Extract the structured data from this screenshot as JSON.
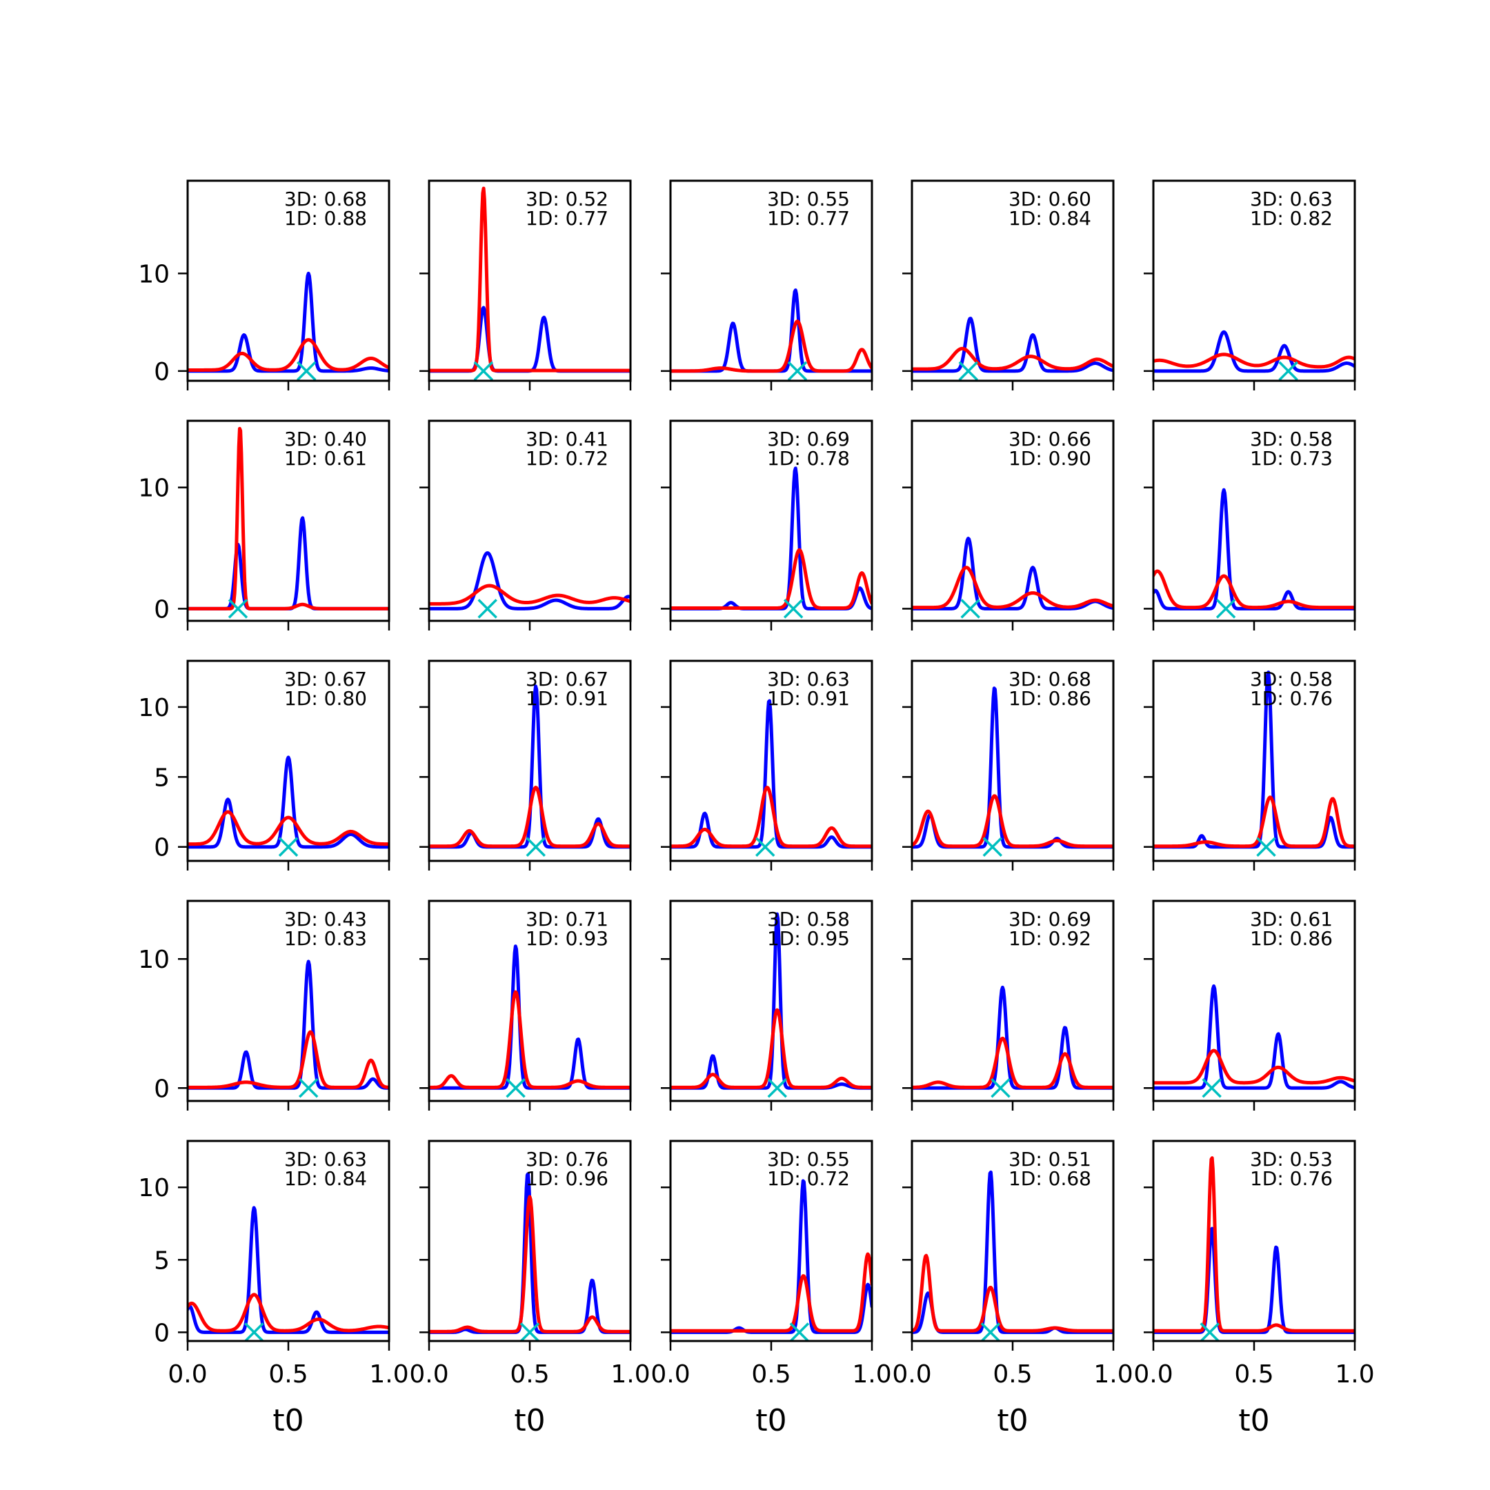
{
  "chart_data": {
    "type": "line",
    "layout": "small-multiples 5x5",
    "xlabel": "t0",
    "xlim": [
      0,
      1
    ],
    "xticks": [
      "0.0",
      "0.5",
      "1.0"
    ],
    "colors": {
      "blue": "#0000ff",
      "red": "#ff0000",
      "marker": "#00bfbf"
    },
    "shared_y_per_row": true,
    "row_ylims": [
      [
        -1,
        19.5
      ],
      [
        -1,
        15.5
      ],
      [
        -1,
        13.3
      ],
      [
        -1,
        14.5
      ],
      [
        -0.6,
        13.2
      ]
    ],
    "row_yticks": [
      [
        "0",
        "10"
      ],
      [
        "0",
        "10"
      ],
      [
        "0",
        "5",
        "10"
      ],
      [
        "0",
        "10"
      ],
      [
        "0",
        "5",
        "10"
      ]
    ],
    "panels": [
      {
        "label3d": "3D: 0.68",
        "label1d": "1D: 0.88",
        "marker_x": 0.59,
        "blue": [
          [
            0.28,
            3.7,
            0.022
          ],
          [
            0.6,
            10.0,
            0.018
          ],
          [
            0.91,
            0.3,
            0.04
          ]
        ],
        "red": [
          [
            0.27,
            1.7,
            0.045
          ],
          [
            0.6,
            3.1,
            0.05
          ],
          [
            0.91,
            1.2,
            0.05
          ]
        ],
        "red_base": 0.1
      },
      {
        "label3d": "3D: 0.52",
        "label1d": "1D: 0.77",
        "marker_x": 0.27,
        "blue": [
          [
            0.27,
            6.5,
            0.018
          ],
          [
            0.57,
            5.5,
            0.02
          ]
        ],
        "red": [
          [
            0.27,
            18.7,
            0.014
          ]
        ],
        "red_base": 0.05
      },
      {
        "label3d": "3D: 0.55",
        "label1d": "1D: 0.77",
        "marker_x": 0.63,
        "blue": [
          [
            0.31,
            4.9,
            0.02
          ],
          [
            0.62,
            8.3,
            0.016
          ]
        ],
        "red": [
          [
            0.25,
            0.3,
            0.05
          ],
          [
            0.63,
            5.1,
            0.03
          ],
          [
            0.95,
            2.2,
            0.025
          ]
        ],
        "red_base": 0.0
      },
      {
        "label3d": "3D: 0.60",
        "label1d": "1D: 0.84",
        "marker_x": 0.28,
        "blue": [
          [
            0.29,
            5.4,
            0.022
          ],
          [
            0.6,
            3.7,
            0.022
          ],
          [
            0.91,
            0.8,
            0.04
          ]
        ],
        "red": [
          [
            0.25,
            2.1,
            0.05
          ],
          [
            0.59,
            1.3,
            0.06
          ],
          [
            0.92,
            1.0,
            0.05
          ]
        ],
        "red_base": 0.2
      },
      {
        "label3d": "3D: 0.63",
        "label1d": "1D: 0.82",
        "marker_x": 0.67,
        "blue": [
          [
            0.35,
            4.0,
            0.03
          ],
          [
            0.65,
            2.6,
            0.025
          ],
          [
            0.96,
            0.8,
            0.04
          ]
        ],
        "red": [
          [
            0.03,
            0.7,
            0.06
          ],
          [
            0.35,
            1.3,
            0.07
          ],
          [
            0.65,
            1.0,
            0.06
          ],
          [
            0.97,
            1.0,
            0.05
          ]
        ],
        "red_base": 0.4
      },
      {
        "label3d": "3D: 0.40",
        "label1d": "1D: 0.61",
        "marker_x": 0.25,
        "blue": [
          [
            0.25,
            5.3,
            0.016
          ],
          [
            0.57,
            7.5,
            0.016
          ]
        ],
        "red": [
          [
            0.26,
            15.0,
            0.012
          ],
          [
            0.57,
            0.35,
            0.03
          ]
        ],
        "red_base": 0.0
      },
      {
        "label3d": "3D: 0.41",
        "label1d": "1D: 0.72",
        "marker_x": 0.29,
        "blue": [
          [
            0.29,
            4.6,
            0.04
          ],
          [
            0.63,
            0.7,
            0.05
          ],
          [
            0.99,
            1.0,
            0.03
          ]
        ],
        "red": [
          [
            0.3,
            1.5,
            0.07
          ],
          [
            0.64,
            0.7,
            0.07
          ],
          [
            0.92,
            0.5,
            0.06
          ]
        ],
        "red_base": 0.4
      },
      {
        "label3d": "3D: 0.69",
        "label1d": "1D: 0.78",
        "marker_x": 0.61,
        "blue": [
          [
            0.3,
            0.5,
            0.02
          ],
          [
            0.62,
            11.6,
            0.016
          ],
          [
            0.94,
            1.7,
            0.02
          ]
        ],
        "red": [
          [
            0.64,
            4.8,
            0.03
          ],
          [
            0.95,
            2.9,
            0.025
          ]
        ],
        "red_base": 0.05
      },
      {
        "label3d": "3D: 0.66",
        "label1d": "1D: 0.90",
        "marker_x": 0.29,
        "blue": [
          [
            0.28,
            5.8,
            0.022
          ],
          [
            0.6,
            3.4,
            0.022
          ],
          [
            0.91,
            0.6,
            0.04
          ]
        ],
        "red": [
          [
            0.27,
            3.3,
            0.045
          ],
          [
            0.6,
            1.2,
            0.06
          ],
          [
            0.91,
            0.6,
            0.05
          ]
        ],
        "red_base": 0.1
      },
      {
        "label3d": "3D: 0.58",
        "label1d": "1D: 0.73",
        "marker_x": 0.36,
        "blue": [
          [
            0.01,
            1.5,
            0.02
          ],
          [
            0.35,
            9.8,
            0.018
          ],
          [
            0.67,
            1.4,
            0.02
          ]
        ],
        "red": [
          [
            0.02,
            3.0,
            0.04
          ],
          [
            0.35,
            2.6,
            0.04
          ],
          [
            0.67,
            0.5,
            0.05
          ]
        ],
        "red_base": 0.1
      },
      {
        "label3d": "3D: 0.67",
        "label1d": "1D: 0.80",
        "marker_x": 0.5,
        "blue": [
          [
            0.2,
            3.4,
            0.022
          ],
          [
            0.5,
            6.4,
            0.02
          ],
          [
            0.81,
            0.9,
            0.04
          ]
        ],
        "red": [
          [
            0.2,
            2.3,
            0.045
          ],
          [
            0.5,
            1.9,
            0.05
          ],
          [
            0.81,
            0.9,
            0.05
          ]
        ],
        "red_base": 0.2
      },
      {
        "label3d": "3D: 0.67",
        "label1d": "1D: 0.91",
        "marker_x": 0.53,
        "blue": [
          [
            0.21,
            1.0,
            0.02
          ],
          [
            0.53,
            11.5,
            0.016
          ],
          [
            0.84,
            2.0,
            0.02
          ]
        ],
        "red": [
          [
            0.2,
            1.1,
            0.03
          ],
          [
            0.53,
            4.2,
            0.03
          ],
          [
            0.84,
            1.6,
            0.03
          ]
        ],
        "red_base": 0.05
      },
      {
        "label3d": "3D: 0.63",
        "label1d": "1D: 0.91",
        "marker_x": 0.47,
        "blue": [
          [
            0.17,
            2.4,
            0.018
          ],
          [
            0.49,
            10.5,
            0.016
          ],
          [
            0.8,
            0.7,
            0.02
          ]
        ],
        "red": [
          [
            0.17,
            1.2,
            0.035
          ],
          [
            0.48,
            4.2,
            0.03
          ],
          [
            0.8,
            1.3,
            0.03
          ]
        ],
        "red_base": 0.05
      },
      {
        "label3d": "3D: 0.68",
        "label1d": "1D: 0.86",
        "marker_x": 0.4,
        "blue": [
          [
            0.09,
            2.3,
            0.02
          ],
          [
            0.41,
            11.4,
            0.016
          ],
          [
            0.72,
            0.6,
            0.02
          ]
        ],
        "red": [
          [
            0.08,
            2.5,
            0.03
          ],
          [
            0.41,
            3.6,
            0.03
          ],
          [
            0.72,
            0.4,
            0.04
          ]
        ],
        "red_base": 0.05
      },
      {
        "label3d": "3D: 0.58",
        "label1d": "1D: 0.76",
        "marker_x": 0.56,
        "blue": [
          [
            0.24,
            0.8,
            0.015
          ],
          [
            0.57,
            12.5,
            0.016
          ],
          [
            0.88,
            2.1,
            0.018
          ]
        ],
        "red": [
          [
            0.26,
            0.3,
            0.05
          ],
          [
            0.58,
            3.5,
            0.03
          ],
          [
            0.89,
            3.4,
            0.025
          ]
        ],
        "red_base": 0.05
      },
      {
        "label3d": "3D: 0.43",
        "label1d": "1D: 0.83",
        "marker_x": 0.6,
        "blue": [
          [
            0.29,
            2.8,
            0.018
          ],
          [
            0.6,
            9.8,
            0.018
          ],
          [
            0.92,
            0.7,
            0.02
          ]
        ],
        "red": [
          [
            0.29,
            0.4,
            0.06
          ],
          [
            0.61,
            4.3,
            0.03
          ],
          [
            0.91,
            2.1,
            0.025
          ]
        ],
        "red_base": 0.05
      },
      {
        "label3d": "3D: 0.71",
        "label1d": "1D: 0.93",
        "marker_x": 0.43,
        "blue": [
          [
            0.43,
            11.0,
            0.016
          ],
          [
            0.74,
            3.8,
            0.017
          ]
        ],
        "red": [
          [
            0.11,
            0.9,
            0.025
          ],
          [
            0.43,
            7.4,
            0.025
          ],
          [
            0.74,
            0.5,
            0.04
          ]
        ],
        "red_base": 0.05
      },
      {
        "label3d": "3D: 0.58",
        "label1d": "1D: 0.95",
        "marker_x": 0.53,
        "blue": [
          [
            0.21,
            2.5,
            0.016
          ],
          [
            0.53,
            13.5,
            0.014
          ],
          [
            0.85,
            0.3,
            0.03
          ]
        ],
        "red": [
          [
            0.21,
            1.0,
            0.03
          ],
          [
            0.53,
            6.0,
            0.025
          ],
          [
            0.85,
            0.7,
            0.03
          ]
        ],
        "red_base": 0.05
      },
      {
        "label3d": "3D: 0.69",
        "label1d": "1D: 0.92",
        "marker_x": 0.44,
        "blue": [
          [
            0.45,
            7.8,
            0.018
          ],
          [
            0.76,
            4.7,
            0.018
          ]
        ],
        "red": [
          [
            0.13,
            0.4,
            0.04
          ],
          [
            0.45,
            3.8,
            0.03
          ],
          [
            0.76,
            2.6,
            0.03
          ]
        ],
        "red_base": 0.05
      },
      {
        "label3d": "3D: 0.61",
        "label1d": "1D: 0.86",
        "marker_x": 0.29,
        "blue": [
          [
            0.3,
            7.9,
            0.018
          ],
          [
            0.62,
            4.2,
            0.018
          ],
          [
            0.93,
            0.5,
            0.03
          ]
        ],
        "red": [
          [
            0.3,
            2.5,
            0.04
          ],
          [
            0.62,
            1.2,
            0.05
          ],
          [
            0.93,
            0.4,
            0.05
          ]
        ],
        "red_base": 0.4
      },
      {
        "label3d": "3D: 0.63",
        "label1d": "1D: 0.84",
        "marker_x": 0.33,
        "blue": [
          [
            0.01,
            1.8,
            0.02
          ],
          [
            0.33,
            8.6,
            0.018
          ],
          [
            0.64,
            1.4,
            0.02
          ]
        ],
        "red": [
          [
            0.02,
            1.9,
            0.04
          ],
          [
            0.33,
            2.5,
            0.04
          ],
          [
            0.65,
            0.8,
            0.05
          ],
          [
            0.95,
            0.3,
            0.06
          ]
        ],
        "red_base": 0.1
      },
      {
        "label3d": "3D: 0.76",
        "label1d": "1D: 0.96",
        "marker_x": 0.5,
        "blue": [
          [
            0.18,
            0.2,
            0.02
          ],
          [
            0.49,
            11.0,
            0.015
          ],
          [
            0.81,
            3.6,
            0.017
          ]
        ],
        "red": [
          [
            0.19,
            0.3,
            0.03
          ],
          [
            0.5,
            9.3,
            0.02
          ],
          [
            0.81,
            1.0,
            0.025
          ]
        ],
        "red_base": 0.05
      },
      {
        "label3d": "3D: 0.55",
        "label1d": "1D: 0.72",
        "marker_x": 0.64,
        "blue": [
          [
            0.34,
            0.3,
            0.02
          ],
          [
            0.66,
            10.5,
            0.016
          ],
          [
            0.98,
            3.3,
            0.018
          ]
        ],
        "red": [
          [
            0.66,
            3.8,
            0.025
          ],
          [
            0.98,
            5.3,
            0.02
          ]
        ],
        "red_base": 0.1
      },
      {
        "label3d": "3D: 0.51",
        "label1d": "1D: 0.68",
        "marker_x": 0.39,
        "blue": [
          [
            0.08,
            2.7,
            0.02
          ],
          [
            0.39,
            11.1,
            0.016
          ],
          [
            0.71,
            0.3,
            0.02
          ]
        ],
        "red": [
          [
            0.07,
            5.2,
            0.02
          ],
          [
            0.39,
            3.0,
            0.025
          ],
          [
            0.71,
            0.2,
            0.04
          ]
        ],
        "red_base": 0.1
      },
      {
        "label3d": "3D: 0.53",
        "label1d": "1D: 0.76",
        "marker_x": 0.28,
        "blue": [
          [
            0.29,
            7.2,
            0.015
          ],
          [
            0.61,
            5.9,
            0.016
          ]
        ],
        "red": [
          [
            0.29,
            12.0,
            0.015
          ],
          [
            0.61,
            0.4,
            0.03
          ]
        ],
        "red_base": 0.1
      }
    ]
  }
}
